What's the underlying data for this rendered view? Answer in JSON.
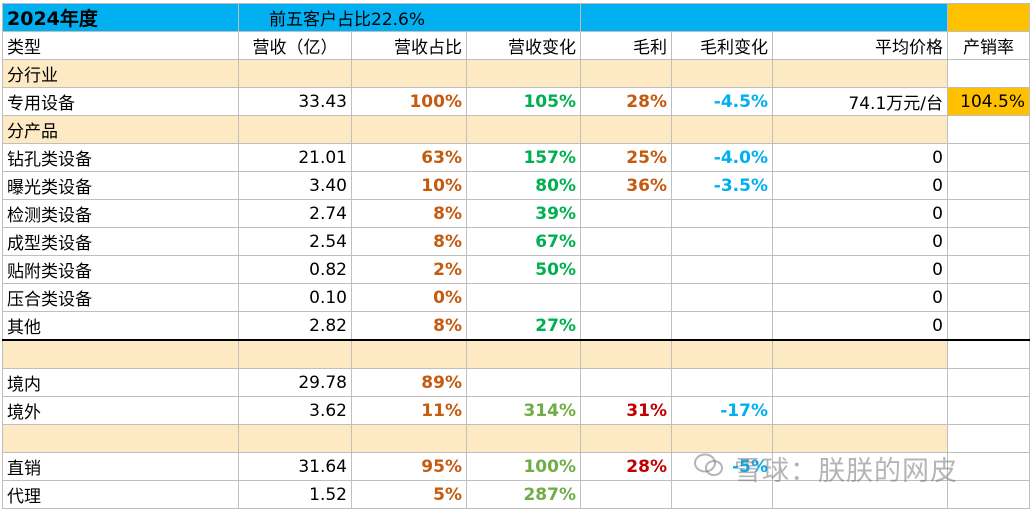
{
  "title": {
    "year": "2024年度",
    "note": "前五客户占比22.6%"
  },
  "headers": [
    "类型",
    "营收（亿）",
    "营收占比",
    "营收变化",
    "毛利",
    "毛利变化",
    "平均价格",
    "产销率"
  ],
  "sections": {
    "industry": "分行业",
    "product": "分产品"
  },
  "industry_row": {
    "name": "专用设备",
    "revenue": "33.43",
    "share": "100%",
    "change": "105%",
    "margin": "28%",
    "margin_change": "-4.5%",
    "price": "74.1万元/台",
    "rate": "104.5%"
  },
  "products": [
    {
      "name": "钻孔类设备",
      "revenue": "21.01",
      "share": "63%",
      "change": "157%",
      "margin": "25%",
      "margin_change": "-4.0%",
      "price": "0"
    },
    {
      "name": "曝光类设备",
      "revenue": "3.40",
      "share": "10%",
      "change": "80%",
      "margin": "36%",
      "margin_change": "-3.5%",
      "price": "0"
    },
    {
      "name": "检测类设备",
      "revenue": "2.74",
      "share": "8%",
      "change": "39%",
      "margin": "",
      "margin_change": "",
      "price": "0"
    },
    {
      "name": "成型类设备",
      "revenue": "2.54",
      "share": "8%",
      "change": "67%",
      "margin": "",
      "margin_change": "",
      "price": "0"
    },
    {
      "name": "贴附类设备",
      "revenue": "0.82",
      "share": "2%",
      "change": "50%",
      "margin": "",
      "margin_change": "",
      "price": "0"
    },
    {
      "name": "压合类设备",
      "revenue": "0.10",
      "share": "0%",
      "change": "",
      "margin": "",
      "margin_change": "",
      "price": "0"
    },
    {
      "name": "其他",
      "revenue": "2.82",
      "share": "8%",
      "change": "27%",
      "margin": "",
      "margin_change": "",
      "price": "0"
    }
  ],
  "regions": [
    {
      "name": "境内",
      "revenue": "29.78",
      "share": "89%",
      "change": "",
      "margin": "",
      "margin_change": ""
    },
    {
      "name": "境外",
      "revenue": "3.62",
      "share": "11%",
      "change": "314%",
      "margin": "31%",
      "margin_change": "-17%"
    }
  ],
  "channels": [
    {
      "name": "直销",
      "revenue": "31.64",
      "share": "95%",
      "change": "100%",
      "margin": "28%",
      "margin_change": "-5%"
    },
    {
      "name": "代理",
      "revenue": "1.52",
      "share": "5%",
      "change": "287%",
      "margin": "",
      "margin_change": ""
    }
  ],
  "watermark": "雪球：朕朕的网皮",
  "watermark_icon": "wechat-icon",
  "colors": {
    "header_blue": "#00b0f0",
    "gold": "#ffc000",
    "cream": "#fde9c4",
    "brown": "#c55a11",
    "green": "#00b050",
    "red": "#c00000"
  }
}
